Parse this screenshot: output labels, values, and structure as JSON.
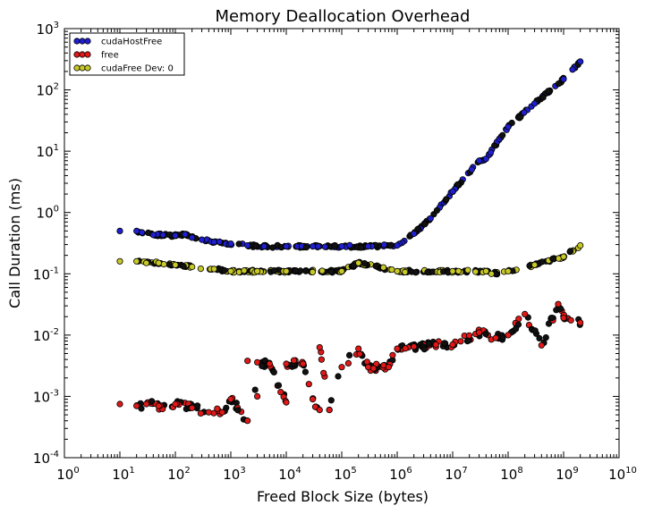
{
  "chart_data": {
    "type": "scatter",
    "title": "Memory Deallocation Overhead",
    "xlabel": "Freed Block Size (bytes)",
    "ylabel": "Call Duration (ms)",
    "xscale": "log",
    "yscale": "log",
    "xlim": [
      1,
      10000000000
    ],
    "ylim": [
      0.0001,
      1000
    ],
    "x_ticks": [
      {
        "base": "10",
        "exp": "0"
      },
      {
        "base": "10",
        "exp": "1"
      },
      {
        "base": "10",
        "exp": "2"
      },
      {
        "base": "10",
        "exp": "3"
      },
      {
        "base": "10",
        "exp": "4"
      },
      {
        "base": "10",
        "exp": "5"
      },
      {
        "base": "10",
        "exp": "6"
      },
      {
        "base": "10",
        "exp": "7"
      },
      {
        "base": "10",
        "exp": "8"
      },
      {
        "base": "10",
        "exp": "9"
      },
      {
        "base": "10",
        "exp": "10"
      }
    ],
    "y_ticks": [
      {
        "base": "10",
        "exp": "-4"
      },
      {
        "base": "10",
        "exp": "-3"
      },
      {
        "base": "10",
        "exp": "-2"
      },
      {
        "base": "10",
        "exp": "-1"
      },
      {
        "base": "10",
        "exp": "0"
      },
      {
        "base": "10",
        "exp": "1"
      },
      {
        "base": "10",
        "exp": "2"
      },
      {
        "base": "10",
        "exp": "3"
      }
    ],
    "legend": {
      "location": "upper left"
    },
    "series": [
      {
        "name": "cudaHostFree",
        "color": "#1f1fd0",
        "points": [
          [
            10,
            0.5
          ],
          [
            20,
            0.5
          ],
          [
            40,
            0.43
          ],
          [
            60,
            0.43
          ],
          [
            100,
            0.42
          ],
          [
            150,
            0.44
          ],
          [
            200,
            0.39
          ],
          [
            300,
            0.36
          ],
          [
            500,
            0.33
          ],
          [
            1000,
            0.31
          ],
          [
            2000,
            0.29
          ],
          [
            4000,
            0.28
          ],
          [
            10000,
            0.28
          ],
          [
            30000,
            0.28
          ],
          [
            100000,
            0.28
          ],
          [
            300000,
            0.28
          ],
          [
            1000000,
            0.29
          ],
          [
            2000000,
            0.45
          ],
          [
            4000000,
            0.8
          ],
          [
            10000000,
            2.2
          ],
          [
            30000000,
            7
          ],
          [
            40000000,
            7.5
          ],
          [
            100000000,
            25
          ],
          [
            300000000,
            60
          ],
          [
            1000000000,
            150
          ],
          [
            2000000000,
            290
          ]
        ]
      },
      {
        "name": "free",
        "color": "#e01818",
        "points": [
          [
            10,
            0.00075
          ],
          [
            20,
            0.0007
          ],
          [
            30,
            0.00075
          ],
          [
            50,
            0.0007
          ],
          [
            100,
            0.00075
          ],
          [
            200,
            0.00065
          ],
          [
            400,
            0.00055
          ],
          [
            700,
            0.00055
          ],
          [
            1000,
            0.0009
          ],
          [
            2000,
            0.0004
          ],
          [
            3000,
            0.001
          ],
          [
            10000,
            0.0008
          ],
          [
            30000,
            0.0009
          ],
          [
            40000,
            0.0006
          ],
          [
            60000,
            0.0006
          ],
          [
            2000,
            0.0038
          ],
          [
            3000,
            0.0036
          ],
          [
            5000,
            0.0034
          ],
          [
            10000,
            0.0034
          ],
          [
            20000,
            0.0034
          ],
          [
            40000,
            0.0063
          ],
          [
            100000,
            0.003
          ],
          [
            200000,
            0.006
          ],
          [
            300000,
            0.003
          ],
          [
            700000,
            0.003
          ],
          [
            1000000,
            0.006
          ],
          [
            2000000,
            0.0065
          ],
          [
            5000000,
            0.007
          ],
          [
            10000000,
            0.007
          ],
          [
            30000000,
            0.011
          ],
          [
            60000000,
            0.009
          ],
          [
            100000000,
            0.01
          ],
          [
            200000000,
            0.022
          ],
          [
            400000000,
            0.0068
          ],
          [
            800000000,
            0.032
          ],
          [
            1000000000,
            0.019
          ],
          [
            2000000000,
            0.016
          ]
        ]
      },
      {
        "name": "cudaFree Dev: 0",
        "color": "#c8c828",
        "points": [
          [
            10,
            0.16
          ],
          [
            20,
            0.16
          ],
          [
            30,
            0.15
          ],
          [
            50,
            0.15
          ],
          [
            100,
            0.14
          ],
          [
            200,
            0.13
          ],
          [
            500,
            0.12
          ],
          [
            1000,
            0.11
          ],
          [
            3000,
            0.11
          ],
          [
            10000,
            0.11
          ],
          [
            100000,
            0.11
          ],
          [
            200000,
            0.15
          ],
          [
            1000000,
            0.11
          ],
          [
            10000000,
            0.11
          ],
          [
            40000000,
            0.11
          ],
          [
            50000000,
            0.1
          ],
          [
            100000000,
            0.11
          ],
          [
            300000000,
            0.14
          ],
          [
            1000000000,
            0.19
          ],
          [
            2000000000,
            0.29
          ]
        ]
      }
    ]
  }
}
